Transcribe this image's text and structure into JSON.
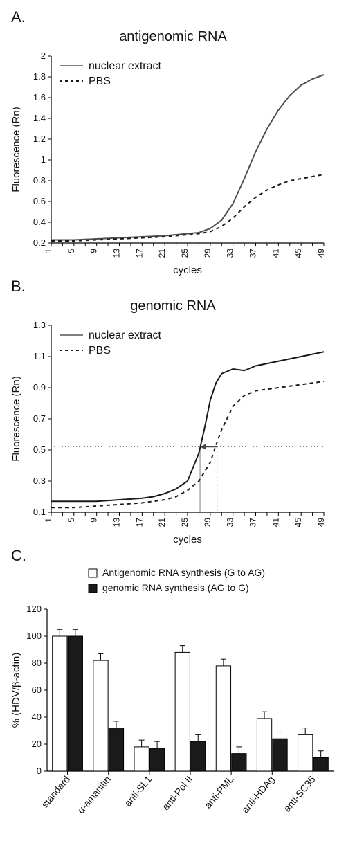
{
  "panelA": {
    "letter": "A.",
    "title": "antigenomic RNA",
    "type": "line",
    "xlabel": "cycles",
    "ylabel": "Fluorescence (Rn)",
    "label_fontsize": 15,
    "title_fontsize": 20,
    "xlim": [
      1,
      49
    ],
    "ylim": [
      0.2,
      2.0
    ],
    "yticks": [
      0.2,
      0.4,
      0.6,
      0.8,
      1,
      1.2,
      1.4,
      1.6,
      1.8,
      2
    ],
    "xtick_step": 4,
    "line_color": "#4f4f4f",
    "line_width": 2,
    "background_color": "#ffffff",
    "axis_color": "#000000",
    "series": [
      {
        "name": "nuclear extract",
        "dash": "solid",
        "color": "#4f4f4f",
        "xy": [
          [
            1,
            0.23
          ],
          [
            5,
            0.23
          ],
          [
            9,
            0.24
          ],
          [
            13,
            0.25
          ],
          [
            17,
            0.26
          ],
          [
            21,
            0.27
          ],
          [
            23,
            0.28
          ],
          [
            25,
            0.29
          ],
          [
            27,
            0.3
          ],
          [
            29,
            0.34
          ],
          [
            31,
            0.42
          ],
          [
            33,
            0.58
          ],
          [
            35,
            0.82
          ],
          [
            37,
            1.08
          ],
          [
            39,
            1.3
          ],
          [
            41,
            1.48
          ],
          [
            43,
            1.62
          ],
          [
            45,
            1.72
          ],
          [
            47,
            1.78
          ],
          [
            49,
            1.82
          ]
        ]
      },
      {
        "name": "PBS",
        "dash": "dashed",
        "color": "#1a1a1a",
        "xy": [
          [
            1,
            0.22
          ],
          [
            5,
            0.22
          ],
          [
            9,
            0.23
          ],
          [
            13,
            0.24
          ],
          [
            17,
            0.25
          ],
          [
            21,
            0.26
          ],
          [
            23,
            0.27
          ],
          [
            25,
            0.28
          ],
          [
            27,
            0.29
          ],
          [
            29,
            0.31
          ],
          [
            31,
            0.36
          ],
          [
            33,
            0.44
          ],
          [
            35,
            0.55
          ],
          [
            37,
            0.64
          ],
          [
            39,
            0.71
          ],
          [
            41,
            0.76
          ],
          [
            43,
            0.8
          ],
          [
            45,
            0.82
          ],
          [
            47,
            0.84
          ],
          [
            49,
            0.86
          ]
        ]
      }
    ],
    "legend_items": [
      {
        "label": "nuclear extract",
        "dash": "solid",
        "color": "#808080"
      },
      {
        "label": "PBS",
        "dash": "dashed",
        "color": "#1a1a1a"
      }
    ]
  },
  "panelB": {
    "letter": "B.",
    "title": "genomic RNA",
    "type": "line",
    "xlabel": "cycles",
    "ylabel": "Fluorescence (Rn)",
    "label_fontsize": 15,
    "title_fontsize": 20,
    "xlim": [
      1,
      49
    ],
    "ylim": [
      0.1,
      1.3
    ],
    "yticks": [
      0.1,
      0.3,
      0.5,
      0.7,
      0.9,
      1.1,
      1.3
    ],
    "xtick_step": 4,
    "line_color_solid": "#4f4f4f",
    "line_width": 2,
    "background_color": "#ffffff",
    "axis_color": "#000000",
    "threshold_y": 0.52,
    "threshold_color": "#808080",
    "threshold_dash": "1 3",
    "arrow_color": "#4a4a4a",
    "ct_lines_x": [
      27.2,
      30.2
    ],
    "series": [
      {
        "name": "nuclear extract",
        "dash": "solid",
        "color": "#1a1a1a",
        "xy": [
          [
            1,
            0.17
          ],
          [
            5,
            0.17
          ],
          [
            9,
            0.17
          ],
          [
            13,
            0.18
          ],
          [
            17,
            0.19
          ],
          [
            19,
            0.2
          ],
          [
            21,
            0.22
          ],
          [
            23,
            0.25
          ],
          [
            25,
            0.3
          ],
          [
            27,
            0.48
          ],
          [
            28,
            0.64
          ],
          [
            29,
            0.82
          ],
          [
            30,
            0.93
          ],
          [
            31,
            0.99
          ],
          [
            33,
            1.02
          ],
          [
            35,
            1.01
          ],
          [
            37,
            1.04
          ],
          [
            41,
            1.07
          ],
          [
            45,
            1.1
          ],
          [
            49,
            1.13
          ]
        ]
      },
      {
        "name": "PBS",
        "dash": "dashed",
        "color": "#1a1a1a",
        "xy": [
          [
            1,
            0.13
          ],
          [
            5,
            0.13
          ],
          [
            9,
            0.14
          ],
          [
            13,
            0.15
          ],
          [
            17,
            0.16
          ],
          [
            21,
            0.18
          ],
          [
            23,
            0.2
          ],
          [
            25,
            0.24
          ],
          [
            27,
            0.3
          ],
          [
            29,
            0.42
          ],
          [
            30,
            0.53
          ],
          [
            31,
            0.63
          ],
          [
            33,
            0.78
          ],
          [
            35,
            0.85
          ],
          [
            37,
            0.88
          ],
          [
            41,
            0.9
          ],
          [
            45,
            0.92
          ],
          [
            49,
            0.94
          ]
        ]
      }
    ],
    "legend_items": [
      {
        "label": "nuclear extract",
        "dash": "solid",
        "color": "#808080"
      },
      {
        "label": "PBS",
        "dash": "dashed",
        "color": "#1a1a1a"
      }
    ]
  },
  "panelC": {
    "letter": "C.",
    "type": "bar",
    "ylabel": "% (HDV/β-actin)",
    "label_fontsize": 15,
    "ylim": [
      0,
      120
    ],
    "ytick_step": 20,
    "background_color": "#ffffff",
    "axis_color": "#000000",
    "bar_group_width": 0.74,
    "bar_gap": 0.02,
    "categories": [
      "standard",
      "α-amanitin",
      "anti-SL1",
      "anti-Pol II",
      "anti-PML",
      "anti-HDAg",
      "anti-SC35"
    ],
    "legend_items": [
      {
        "label": "Antigenomic RNA synthesis (G to AG)",
        "fill": "#ffffff",
        "stroke": "#000000"
      },
      {
        "label": "genomic RNA synthesis (AG to G)",
        "fill": "#1a1a1a",
        "stroke": "#000000"
      }
    ],
    "series": [
      {
        "key": "antigenomic",
        "fill": "#ffffff",
        "stroke": "#000000",
        "values": [
          100,
          82,
          18,
          88,
          78,
          39,
          27
        ],
        "errors": [
          5,
          5,
          5,
          5,
          5,
          5,
          5
        ]
      },
      {
        "key": "genomic",
        "fill": "#1a1a1a",
        "stroke": "#000000",
        "values": [
          100,
          32,
          17,
          22,
          13,
          24,
          10
        ],
        "errors": [
          5,
          5,
          5,
          5,
          5,
          5,
          5
        ]
      }
    ]
  }
}
